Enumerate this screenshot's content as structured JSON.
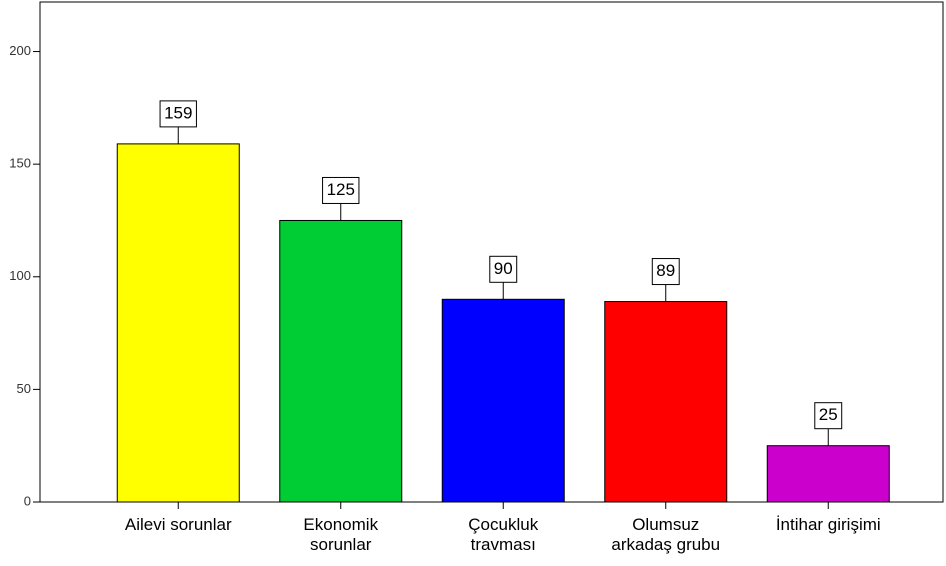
{
  "chart_data": {
    "type": "bar",
    "categories": [
      "Ailevi sorunlar",
      "Ekonomik\nsorunlar",
      "Çocukluk\ntravması",
      "Olumsuz\narkadaş grubu",
      "İntihar girişimi"
    ],
    "values": [
      159,
      125,
      90,
      89,
      25
    ],
    "colors": [
      "#ffff00",
      "#00cc33",
      "#0000ff",
      "#ff0000",
      "#cc00cc"
    ],
    "ylim": [
      0,
      222
    ],
    "yticks": [
      0,
      50,
      100,
      150,
      200
    ],
    "grid": false
  }
}
